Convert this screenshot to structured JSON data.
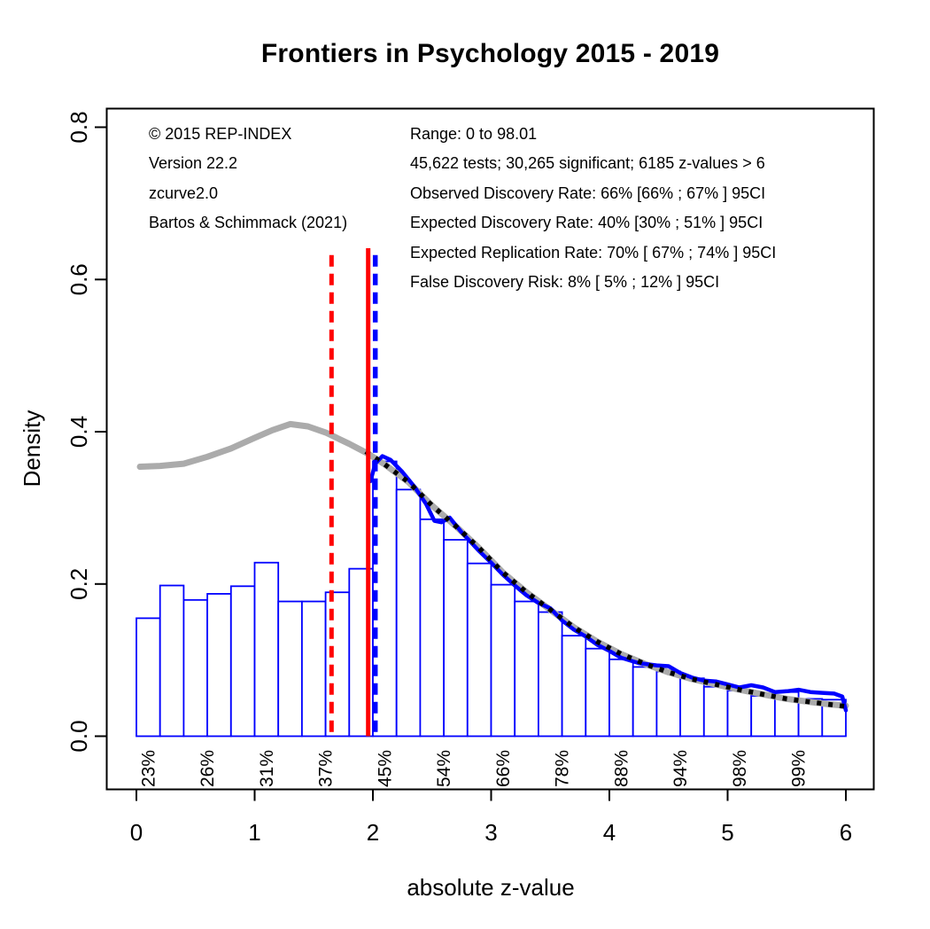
{
  "chart_data": {
    "type": "bar",
    "subtype": "zcurve-histogram-with-density-curves",
    "title": "Frontiers in Psychology 2015 - 2019",
    "xlabel": "absolute z-value",
    "ylabel": "Density",
    "xlim": [
      0,
      6
    ],
    "ylim": [
      0,
      0.8
    ],
    "x_ticks": [
      0,
      1,
      2,
      3,
      4,
      5,
      6
    ],
    "y_ticks": [
      0.0,
      0.2,
      0.4,
      0.6,
      0.8
    ],
    "grid": false,
    "legend": "none",
    "annotations": {
      "left": [
        "© 2015 REP-INDEX",
        "Version 22.2",
        "zcurve2.0",
        "Bartos & Schimmack (2021)"
      ],
      "right": [
        "Range: 0 to 98.01",
        "45,622 tests; 30,265 significant; 6185 z-values > 6",
        "Observed Discovery Rate: 66% [66% ; 67% ] 95CI",
        "Expected Discovery Rate: 40% [30% ; 51% ] 95CI",
        "Expected Replication Rate: 70% [ 67% ; 74% ] 95CI",
        "False Discovery Risk: 8% [ 5% ; 12% ] 95CI"
      ]
    },
    "bars": {
      "start": 0,
      "bin_width": 0.2,
      "heights": [
        0.155,
        0.198,
        0.179,
        0.187,
        0.197,
        0.228,
        0.177,
        0.177,
        0.189,
        0.22,
        0.361,
        0.324,
        0.285,
        0.258,
        0.227,
        0.199,
        0.177,
        0.163,
        0.132,
        0.115,
        0.101,
        0.091,
        0.085,
        0.076,
        0.065,
        0.06,
        0.053,
        0.058,
        0.049,
        0.048
      ]
    },
    "percent_labels": [
      {
        "label": "23%",
        "z": 0.1
      },
      {
        "label": "26%",
        "z": 0.6
      },
      {
        "label": "31%",
        "z": 1.1
      },
      {
        "label": "37%",
        "z": 1.6
      },
      {
        "label": "45%",
        "z": 2.1
      },
      {
        "label": "54%",
        "z": 2.6
      },
      {
        "label": "66%",
        "z": 3.1
      },
      {
        "label": "78%",
        "z": 3.6
      },
      {
        "label": "88%",
        "z": 4.1
      },
      {
        "label": "94%",
        "z": 4.6
      },
      {
        "label": "98%",
        "z": 5.1
      },
      {
        "label": "99%",
        "z": 5.6
      }
    ],
    "curves": {
      "gray_power_model": {
        "name": "model-density-extended",
        "color": "#ABABAB",
        "style": "solid",
        "width": 7,
        "points": [
          [
            0.03,
            0.354
          ],
          [
            0.2,
            0.355
          ],
          [
            0.4,
            0.358
          ],
          [
            0.6,
            0.367
          ],
          [
            0.8,
            0.378
          ],
          [
            1.0,
            0.392
          ],
          [
            1.15,
            0.402
          ],
          [
            1.3,
            0.41
          ],
          [
            1.45,
            0.407
          ],
          [
            1.6,
            0.399
          ],
          [
            1.8,
            0.384
          ],
          [
            1.96,
            0.371
          ],
          [
            2.1,
            0.357
          ],
          [
            2.3,
            0.334
          ],
          [
            2.5,
            0.303
          ],
          [
            2.7,
            0.276
          ],
          [
            2.9,
            0.247
          ],
          [
            3.1,
            0.215
          ],
          [
            3.3,
            0.189
          ],
          [
            3.5,
            0.166
          ],
          [
            3.7,
            0.143
          ],
          [
            3.9,
            0.124
          ],
          [
            4.1,
            0.108
          ],
          [
            4.3,
            0.095
          ],
          [
            4.5,
            0.084
          ],
          [
            4.7,
            0.075
          ],
          [
            4.9,
            0.068
          ],
          [
            5.1,
            0.061
          ],
          [
            5.3,
            0.055
          ],
          [
            5.5,
            0.049
          ],
          [
            5.7,
            0.045
          ],
          [
            5.85,
            0.042
          ],
          [
            6.0,
            0.04
          ]
        ]
      },
      "blue_kde": {
        "name": "observed-density-kde",
        "color": "#0000FF",
        "style": "solid",
        "width": 4.5,
        "points": [
          [
            1.98,
            0.335
          ],
          [
            2.02,
            0.358
          ],
          [
            2.08,
            0.368
          ],
          [
            2.15,
            0.363
          ],
          [
            2.25,
            0.347
          ],
          [
            2.35,
            0.328
          ],
          [
            2.45,
            0.305
          ],
          [
            2.52,
            0.283
          ],
          [
            2.58,
            0.281
          ],
          [
            2.65,
            0.287
          ],
          [
            2.75,
            0.268
          ],
          [
            2.9,
            0.243
          ],
          [
            3.0,
            0.228
          ],
          [
            3.1,
            0.212
          ],
          [
            3.2,
            0.198
          ],
          [
            3.3,
            0.185
          ],
          [
            3.4,
            0.175
          ],
          [
            3.5,
            0.168
          ],
          [
            3.6,
            0.152
          ],
          [
            3.7,
            0.14
          ],
          [
            3.8,
            0.131
          ],
          [
            3.9,
            0.12
          ],
          [
            4.0,
            0.112
          ],
          [
            4.1,
            0.103
          ],
          [
            4.25,
            0.096
          ],
          [
            4.4,
            0.093
          ],
          [
            4.5,
            0.092
          ],
          [
            4.6,
            0.083
          ],
          [
            4.7,
            0.077
          ],
          [
            4.8,
            0.073
          ],
          [
            4.9,
            0.072
          ],
          [
            5.0,
            0.068
          ],
          [
            5.1,
            0.064
          ],
          [
            5.2,
            0.067
          ],
          [
            5.3,
            0.064
          ],
          [
            5.4,
            0.058
          ],
          [
            5.5,
            0.059
          ],
          [
            5.6,
            0.061
          ],
          [
            5.7,
            0.058
          ],
          [
            5.8,
            0.057
          ],
          [
            5.9,
            0.056
          ],
          [
            5.97,
            0.052
          ],
          [
            6.0,
            0.034
          ]
        ]
      },
      "black_fit": {
        "name": "fitted-density-dotted",
        "color": "#000000",
        "style": "dotted",
        "width": 5.5,
        "points": [
          [
            1.94,
            0.374
          ],
          [
            2.1,
            0.357
          ],
          [
            2.3,
            0.334
          ],
          [
            2.5,
            0.303
          ],
          [
            2.7,
            0.276
          ],
          [
            2.9,
            0.247
          ],
          [
            3.1,
            0.215
          ],
          [
            3.3,
            0.189
          ],
          [
            3.5,
            0.166
          ],
          [
            3.7,
            0.143
          ],
          [
            3.9,
            0.124
          ],
          [
            4.1,
            0.108
          ],
          [
            4.3,
            0.095
          ],
          [
            4.5,
            0.084
          ],
          [
            4.7,
            0.075
          ],
          [
            4.9,
            0.068
          ],
          [
            5.1,
            0.061
          ],
          [
            5.3,
            0.055
          ],
          [
            5.5,
            0.049
          ],
          [
            5.7,
            0.045
          ],
          [
            5.9,
            0.041
          ],
          [
            6.0,
            0.039
          ]
        ]
      }
    },
    "vlines": [
      {
        "name": "edr-reference",
        "z": 1.65,
        "d_top": 0.632,
        "color": "#FF0000",
        "dash": "dashed",
        "width": 5
      },
      {
        "name": "significance-threshold",
        "z": 1.96,
        "d_top": 0.641,
        "color": "#FF0000",
        "dash": "solid",
        "width": 5
      },
      {
        "name": "fit-range-start",
        "z": 2.02,
        "d_top": 0.632,
        "color": "#0000FF",
        "dash": "dashed",
        "width": 5.5
      }
    ],
    "colors": {
      "histogram_outline": "#0000FF",
      "histogram_fill": "#FFFFFF",
      "model_curve": "#ABABAB",
      "kde_curve": "#0000FF",
      "fit_curve": "#000000",
      "threshold_line": "#FF0000",
      "text": "#000000",
      "background": "#FFFFFF"
    }
  }
}
